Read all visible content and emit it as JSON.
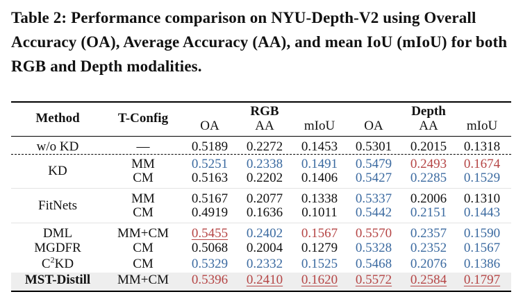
{
  "caption": "Table 2: Performance comparison on NYU-Depth-V2 using Overall Accuracy (OA), Average Accuracy (AA), and mean IoU (mIoU) for both RGB and Depth modalities.",
  "header": {
    "method": "Method",
    "tconfig": "T-Config",
    "groups": [
      "RGB",
      "Depth"
    ],
    "metrics": [
      "OA",
      "AA",
      "mIoU",
      "OA",
      "AA",
      "mIoU"
    ]
  },
  "colors": {
    "blue": "#3b6aa0",
    "red": "#b54545",
    "highlight_row": "#eeeeee"
  },
  "rows": [
    {
      "method": "w/o KD",
      "tconfig": "—",
      "values": [
        "0.5189",
        "0.2272",
        "0.1453",
        "0.5301",
        "0.2015",
        "0.1318"
      ],
      "colors": [
        "",
        "",
        "",
        "",
        "",
        ""
      ],
      "underline": [
        false,
        false,
        false,
        false,
        false,
        false
      ]
    },
    {
      "method": "KD",
      "tconfig": "MM",
      "values": [
        "0.5251",
        "0.2338",
        "0.1491",
        "0.5479",
        "0.2493",
        "0.1674"
      ],
      "colors": [
        "blue",
        "blue",
        "blue",
        "blue",
        "red",
        "red"
      ],
      "underline": [
        false,
        false,
        false,
        false,
        false,
        false
      ]
    },
    {
      "method": "",
      "tconfig": "CM",
      "values": [
        "0.5163",
        "0.2202",
        "0.1406",
        "0.5427",
        "0.2285",
        "0.1529"
      ],
      "colors": [
        "",
        "",
        "",
        "blue",
        "blue",
        "blue"
      ],
      "underline": [
        false,
        false,
        false,
        false,
        false,
        false
      ]
    },
    {
      "method": "FitNets",
      "tconfig": "MM",
      "values": [
        "0.5167",
        "0.2077",
        "0.1338",
        "0.5337",
        "0.2006",
        "0.1310"
      ],
      "colors": [
        "",
        "",
        "",
        "blue",
        "",
        ""
      ],
      "underline": [
        false,
        false,
        false,
        false,
        false,
        false
      ]
    },
    {
      "method": "",
      "tconfig": "CM",
      "values": [
        "0.4919",
        "0.1636",
        "0.1011",
        "0.5442",
        "0.2151",
        "0.1443"
      ],
      "colors": [
        "",
        "",
        "",
        "blue",
        "blue",
        "blue"
      ],
      "underline": [
        false,
        false,
        false,
        false,
        false,
        false
      ]
    },
    {
      "method": "DML",
      "tconfig": "MM+CM",
      "values": [
        "0.5455",
        "0.2402",
        "0.1567",
        "0.5570",
        "0.2357",
        "0.1590"
      ],
      "colors": [
        "red",
        "blue",
        "red",
        "red",
        "blue",
        "blue"
      ],
      "underline": [
        true,
        false,
        false,
        false,
        false,
        false
      ]
    },
    {
      "method": "MGDFR",
      "tconfig": "CM",
      "values": [
        "0.5068",
        "0.2004",
        "0.1279",
        "0.5328",
        "0.2352",
        "0.1567"
      ],
      "colors": [
        "",
        "",
        "",
        "blue",
        "blue",
        "blue"
      ],
      "underline": [
        false,
        false,
        false,
        false,
        false,
        false
      ]
    },
    {
      "method": "C",
      "method_sup": "2",
      "method_suffix": "KD",
      "tconfig": "CM",
      "values": [
        "0.5329",
        "0.2332",
        "0.1525",
        "0.5468",
        "0.2076",
        "0.1386"
      ],
      "colors": [
        "blue",
        "blue",
        "blue",
        "blue",
        "blue",
        "blue"
      ],
      "underline": [
        false,
        false,
        false,
        false,
        false,
        false
      ]
    },
    {
      "method": "MST-Distill",
      "tconfig": "MM+CM",
      "values": [
        "0.5396",
        "0.2410",
        "0.1620",
        "0.5572",
        "0.2584",
        "0.1797"
      ],
      "colors": [
        "red",
        "red",
        "red",
        "red",
        "red",
        "red"
      ],
      "underline": [
        false,
        true,
        true,
        true,
        true,
        true
      ]
    }
  ]
}
